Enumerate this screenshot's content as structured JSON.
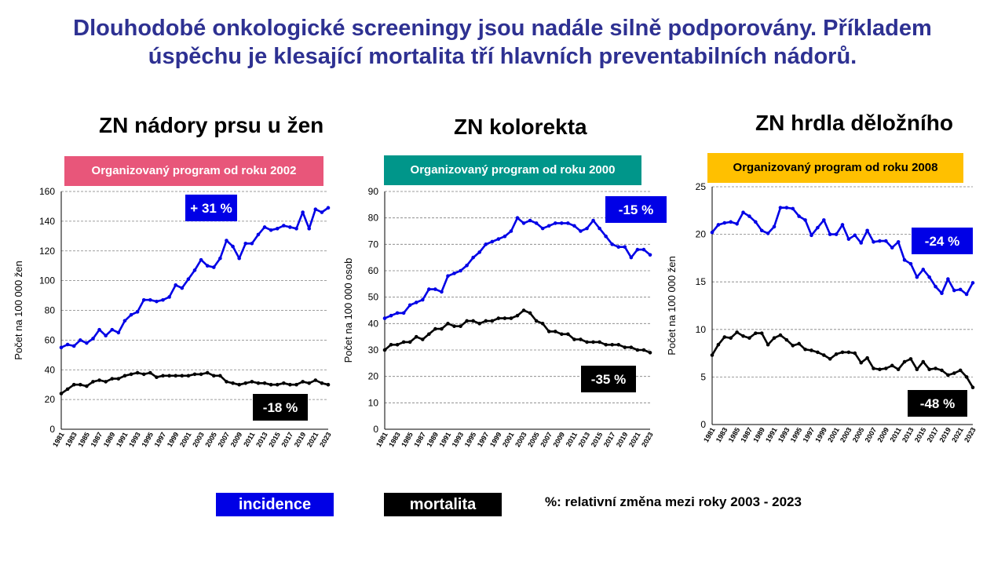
{
  "headline": {
    "line1": "Dlouhodobé onkologické screeningy jsou nadále silně podporovány. Příkladem",
    "line2": "úspěchu je klesající mortalita tří hlavních preventabilních nádorů."
  },
  "colors": {
    "incidence": "#0000e6",
    "mortalita": "#000000",
    "breast_program": "#e8567a",
    "colorectal_program": "#00968a",
    "cervix_program": "#ffc000"
  },
  "legend": {
    "incidence_label": "incidence",
    "mortalita_label": "mortalita",
    "note": "%: relativní změna mezi roky 2003 - 2023"
  },
  "panels": [
    {
      "title": "ZN nádory prsu u žen",
      "program": "Organizovaný program od roku 2002",
      "incidence_change": "+ 31 %",
      "mortality_change": "-18 %"
    },
    {
      "title": "ZN kolorekta",
      "program": "Organizovaný program od roku 2000",
      "incidence_change": "-15 %",
      "mortality_change": "-35 %"
    },
    {
      "title": "ZN hrdla děložního",
      "program": "Organizovaný program od roku 2008",
      "incidence_change": "-24 %",
      "mortality_change": "-48 %"
    }
  ],
  "chart_data": [
    {
      "type": "line",
      "title": "ZN nádory prsu u žen",
      "ylabel": "Počet na 100 000 žen",
      "ylim": [
        0,
        160
      ],
      "yticks": [
        0,
        20,
        40,
        60,
        80,
        100,
        120,
        140,
        160
      ],
      "x": [
        1981,
        1982,
        1983,
        1984,
        1985,
        1986,
        1987,
        1988,
        1989,
        1990,
        1991,
        1992,
        1993,
        1994,
        1995,
        1996,
        1997,
        1998,
        1999,
        2000,
        2001,
        2002,
        2003,
        2004,
        2005,
        2006,
        2007,
        2008,
        2009,
        2010,
        2011,
        2012,
        2013,
        2014,
        2015,
        2016,
        2017,
        2018,
        2019,
        2020,
        2021,
        2022,
        2023
      ],
      "xtick_labels": [
        "1981",
        "1983",
        "1985",
        "1987",
        "1989",
        "1991",
        "1993",
        "1995",
        "1997",
        "1999",
        "2001",
        "2003",
        "2005",
        "2007",
        "2009",
        "2011",
        "2013",
        "2015",
        "2017",
        "2019",
        "2021",
        "2023"
      ],
      "grid": true,
      "series": [
        {
          "name": "incidence",
          "values": [
            55,
            57,
            56,
            60,
            58,
            61,
            67,
            63,
            67,
            65,
            73,
            77,
            79,
            87,
            87,
            86,
            87,
            89,
            97,
            95,
            101,
            107,
            114,
            110,
            109,
            115,
            127,
            123,
            115,
            125,
            125,
            131,
            136,
            134,
            135,
            137,
            136,
            135,
            146,
            135,
            148,
            146,
            149
          ]
        },
        {
          "name": "mortalita",
          "values": [
            24,
            27,
            30,
            30,
            29,
            32,
            33,
            32,
            34,
            34,
            36,
            37,
            38,
            37,
            38,
            35,
            36,
            36,
            36,
            36,
            36,
            37,
            37,
            38,
            36,
            36,
            32,
            31,
            30,
            31,
            32,
            31,
            31,
            30,
            30,
            31,
            30,
            30,
            32,
            31,
            33,
            31,
            30
          ]
        }
      ]
    },
    {
      "type": "line",
      "title": "ZN kolorekta",
      "ylabel": "Počet na 100 000 osob",
      "ylim": [
        0,
        90
      ],
      "yticks": [
        0,
        10,
        20,
        30,
        40,
        50,
        60,
        70,
        80,
        90
      ],
      "x": [
        1981,
        1982,
        1983,
        1984,
        1985,
        1986,
        1987,
        1988,
        1989,
        1990,
        1991,
        1992,
        1993,
        1994,
        1995,
        1996,
        1997,
        1998,
        1999,
        2000,
        2001,
        2002,
        2003,
        2004,
        2005,
        2006,
        2007,
        2008,
        2009,
        2010,
        2011,
        2012,
        2013,
        2014,
        2015,
        2016,
        2017,
        2018,
        2019,
        2020,
        2021,
        2022,
        2023
      ],
      "xtick_labels": [
        "1981",
        "1983",
        "1985",
        "1987",
        "1989",
        "1991",
        "1993",
        "1995",
        "1997",
        "1999",
        "2001",
        "2003",
        "2005",
        "2007",
        "2009",
        "2011",
        "2013",
        "2015",
        "2017",
        "2019",
        "2021",
        "2023"
      ],
      "grid": true,
      "series": [
        {
          "name": "incidence",
          "values": [
            42,
            43,
            44,
            44,
            47,
            48,
            49,
            53,
            53,
            52,
            58,
            59,
            60,
            62,
            65,
            67,
            70,
            71,
            72,
            73,
            75,
            80,
            78,
            79,
            78,
            76,
            77,
            78,
            78,
            78,
            77,
            75,
            76,
            79,
            76,
            73,
            70,
            69,
            69,
            65,
            68,
            68,
            66
          ]
        },
        {
          "name": "mortalita",
          "values": [
            30,
            32,
            32,
            33,
            33,
            35,
            34,
            36,
            38,
            38,
            40,
            39,
            39,
            41,
            41,
            40,
            41,
            41,
            42,
            42,
            42,
            43,
            45,
            44,
            41,
            40,
            37,
            37,
            36,
            36,
            34,
            34,
            33,
            33,
            33,
            32,
            32,
            32,
            31,
            31,
            30,
            30,
            29
          ]
        }
      ]
    },
    {
      "type": "line",
      "title": "ZN hrdla děložního",
      "ylabel": "Počet na 100 000 žen",
      "ylim": [
        0,
        25
      ],
      "yticks": [
        0,
        5,
        10,
        15,
        20,
        25
      ],
      "x": [
        1981,
        1982,
        1983,
        1984,
        1985,
        1986,
        1987,
        1988,
        1989,
        1990,
        1991,
        1992,
        1993,
        1994,
        1995,
        1996,
        1997,
        1998,
        1999,
        2000,
        2001,
        2002,
        2003,
        2004,
        2005,
        2006,
        2007,
        2008,
        2009,
        2010,
        2011,
        2012,
        2013,
        2014,
        2015,
        2016,
        2017,
        2018,
        2019,
        2020,
        2021,
        2022,
        2023
      ],
      "xtick_labels": [
        "1981",
        "1983",
        "1985",
        "1987",
        "1989",
        "1991",
        "1993",
        "1995",
        "1997",
        "1999",
        "2001",
        "2003",
        "2005",
        "2007",
        "2009",
        "2011",
        "2013",
        "2015",
        "2017",
        "2019",
        "2021",
        "2023"
      ],
      "grid": true,
      "series": [
        {
          "name": "incidence",
          "values": [
            20.2,
            21.0,
            21.2,
            21.3,
            21.1,
            22.3,
            21.9,
            21.3,
            20.4,
            20.1,
            20.8,
            22.8,
            22.8,
            22.7,
            21.9,
            21.5,
            19.9,
            20.7,
            21.5,
            20.0,
            20.0,
            21.0,
            19.5,
            19.9,
            19.1,
            20.4,
            19.2,
            19.3,
            19.3,
            18.6,
            19.2,
            17.3,
            16.9,
            15.5,
            16.3,
            15.5,
            14.5,
            13.8,
            15.3,
            14.1,
            14.2,
            13.7,
            14.9
          ]
        },
        {
          "name": "mortalita",
          "values": [
            7.3,
            8.4,
            9.2,
            9.1,
            9.7,
            9.3,
            9.1,
            9.6,
            9.6,
            8.4,
            9.1,
            9.4,
            8.9,
            8.3,
            8.5,
            7.9,
            7.8,
            7.6,
            7.3,
            6.9,
            7.4,
            7.6,
            7.6,
            7.5,
            6.5,
            7.0,
            5.9,
            5.8,
            5.9,
            6.2,
            5.8,
            6.6,
            6.9,
            5.8,
            6.6,
            5.8,
            5.9,
            5.7,
            5.2,
            5.4,
            5.7,
            5.0,
            3.9
          ]
        }
      ]
    }
  ]
}
